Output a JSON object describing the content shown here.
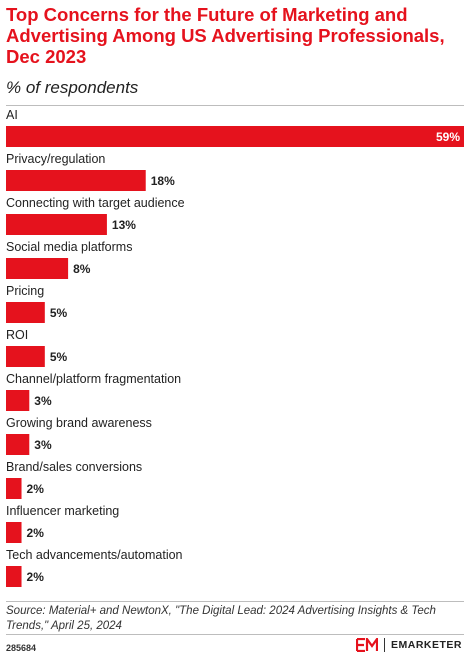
{
  "title": "Top Concerns for the Future of Marketing and Advertising Among US Advertising Professionals, Dec 2023",
  "subtitle": "% of respondents",
  "source": "Source: Material+ and NewtonX, \"The Digital Lead: 2024 Advertising Insights & Tech Trends,\" April 25, 2024",
  "chart_id": "285684",
  "brand": "EMARKETER",
  "colors": {
    "accent": "#e5121d",
    "bar": "#e5121d",
    "text": "#222222"
  },
  "chart_data": {
    "type": "bar",
    "orientation": "horizontal",
    "categories": [
      "AI",
      "Privacy/regulation",
      "Connecting with target audience",
      "Social media platforms",
      "Pricing",
      "ROI",
      "Channel/platform fragmentation",
      "Growing brand awareness",
      "Brand/sales conversions",
      "Influencer marketing",
      "Tech advancements/automation"
    ],
    "values": [
      59,
      18,
      13,
      8,
      5,
      5,
      3,
      3,
      2,
      2,
      2
    ],
    "value_labels": [
      "59%",
      "18%",
      "13%",
      "8%",
      "5%",
      "5%",
      "3%",
      "3%",
      "2%",
      "2%",
      "2%"
    ],
    "title": "Top Concerns for the Future of Marketing and Advertising Among US Advertising Professionals, Dec 2023",
    "subtitle": "% of respondents",
    "xlim": [
      0,
      59
    ],
    "grid": false,
    "legend": "none"
  }
}
